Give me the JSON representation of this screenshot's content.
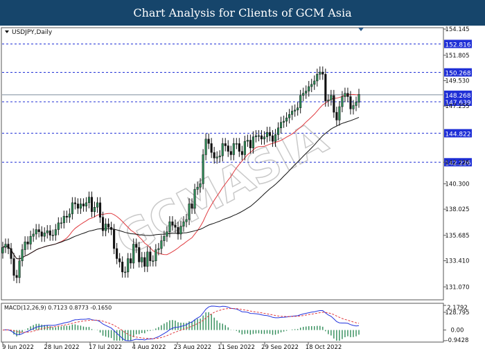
{
  "header": {
    "title": "Chart Analysis for Clients of GCM Asia"
  },
  "colors": {
    "header_bg": "#16456b",
    "bull_candle": "#2e8b57",
    "bear_candle": "#111111",
    "ma_fast": "#e0393e",
    "ma_slow": "#111111",
    "level_line": "#1f2fd6",
    "level_label_bg": "#1f2fd6",
    "current_label_bg": "#1f2fd6",
    "macd_line": "#2233dd",
    "signal_line": "#e0393e",
    "histogram": "#2e8b57"
  },
  "chart_data": [
    {
      "type": "candlestick",
      "symbol_label": "USDJPY,Daily",
      "title": "",
      "ylim": [
        128.795,
        154.145
      ],
      "y_ticks": [
        "154.145",
        "151.805",
        "149.530",
        "147.255",
        "142.226",
        "140.300",
        "138.025",
        "135.685",
        "133.410",
        "131.070",
        "128.795"
      ],
      "horizontal_levels": [
        152.816,
        150.268,
        147.639,
        144.822,
        142.226
      ],
      "level_labels": [
        "152.816",
        "150.268",
        "147.639",
        "144.822",
        "142.226"
      ],
      "current_price": 148.268,
      "current_price_label": "148.268",
      "series": [
        {
          "name": "Open",
          "values": [
            134.1,
            134.6,
            134.9,
            134.5,
            133.6,
            132.1,
            131.9,
            133.4,
            134.4,
            135.1,
            134.9,
            135.6,
            135.8,
            136.2,
            136.0,
            135.6,
            135.9,
            136.1,
            135.7,
            135.7,
            136.2,
            136.8,
            136.8,
            137.4,
            137.3,
            137.6,
            138.6,
            138.5,
            138.1,
            138.5,
            138.3,
            138.6,
            139.1,
            137.8,
            138.2,
            138.6,
            137.3,
            136.1,
            136.7,
            136.4,
            136.2,
            134.5,
            133.6,
            133.3,
            132.4,
            132.4,
            133.6,
            133.2,
            134.9,
            134.6,
            133.3,
            133.7,
            132.9,
            134.2,
            133.4,
            133.4,
            134.4,
            134.5,
            135.2,
            135.6,
            136.0,
            136.9,
            136.6,
            136.4,
            135.8,
            136.5,
            136.9,
            137.1,
            138.5,
            138.1,
            139.8,
            140.0,
            140.3,
            142.9,
            144.3,
            143.9,
            143.1,
            142.6,
            142.7,
            142.8,
            143.9,
            143.7,
            143.2,
            142.9,
            143.9,
            143.9,
            143.2,
            142.9,
            144.1,
            144.2,
            143.5,
            144.5,
            144.6,
            144.6,
            144.3,
            144.5,
            144.9,
            144.6,
            144.1,
            144.7,
            145.3,
            145.8,
            145.9,
            146.2,
            146.5,
            146.8,
            146.9,
            147.1,
            148.2,
            148.4,
            148.6,
            149.0,
            149.2,
            149.5,
            150.1,
            150.3,
            150.1,
            147.7,
            147.8,
            148.2,
            146.7,
            146.0,
            147.2,
            148.1,
            148.4,
            148.1,
            147.0,
            147.3,
            147.6
          ],
          "note": ""
        },
        {
          "name": "Close",
          "values": [
            134.6,
            134.9,
            134.5,
            133.6,
            132.1,
            131.9,
            133.4,
            134.4,
            135.1,
            134.9,
            135.6,
            135.8,
            136.2,
            136.0,
            135.6,
            135.9,
            136.1,
            135.7,
            135.7,
            136.2,
            136.8,
            136.8,
            137.4,
            137.3,
            137.6,
            138.6,
            138.5,
            138.1,
            138.5,
            138.3,
            138.6,
            139.1,
            137.8,
            138.2,
            138.6,
            137.3,
            136.1,
            136.7,
            136.4,
            136.2,
            134.5,
            133.6,
            133.3,
            132.4,
            132.4,
            133.6,
            133.2,
            134.9,
            134.6,
            133.3,
            133.7,
            132.9,
            134.2,
            133.4,
            133.4,
            134.4,
            134.5,
            135.2,
            135.6,
            136.0,
            136.9,
            136.6,
            136.4,
            135.8,
            136.5,
            136.9,
            137.1,
            138.5,
            138.1,
            139.8,
            140.0,
            140.3,
            142.9,
            144.3,
            143.9,
            143.1,
            142.6,
            142.7,
            142.8,
            143.9,
            143.7,
            143.2,
            142.9,
            143.9,
            143.9,
            143.2,
            142.9,
            144.1,
            144.2,
            143.5,
            144.5,
            144.6,
            144.6,
            144.3,
            144.5,
            144.9,
            144.6,
            144.1,
            144.7,
            145.3,
            145.8,
            145.9,
            146.2,
            146.5,
            146.8,
            146.9,
            147.1,
            148.2,
            148.4,
            148.6,
            149.0,
            149.2,
            149.5,
            150.1,
            150.3,
            150.1,
            147.7,
            147.8,
            148.2,
            146.7,
            146.0,
            147.2,
            148.1,
            148.4,
            148.1,
            147.0,
            147.3,
            147.6,
            148.3
          ]
        }
      ],
      "high_low_extent": 0.5,
      "ma_fast_period": 20,
      "ma_slow_period": 50,
      "x_tick_labels": [
        "9 Jun 2022",
        "28 Jun 2022",
        "17 Jul 2022",
        "4 Aug 2022",
        "23 Aug 2022",
        "11 Sep 2022",
        "29 Sep 2022",
        "18 Oct 2022"
      ],
      "watermark": "GCMASIA"
    },
    {
      "type": "macd",
      "label": "MACD(12,26,9) 0.7123 0.8773 -0.1650",
      "ylim": [
        -0.9428,
        2.1792
      ],
      "y_ticks": [
        "2.1792",
        "0.00",
        "-0.9428"
      ],
      "zero_label": "0.00"
    }
  ]
}
